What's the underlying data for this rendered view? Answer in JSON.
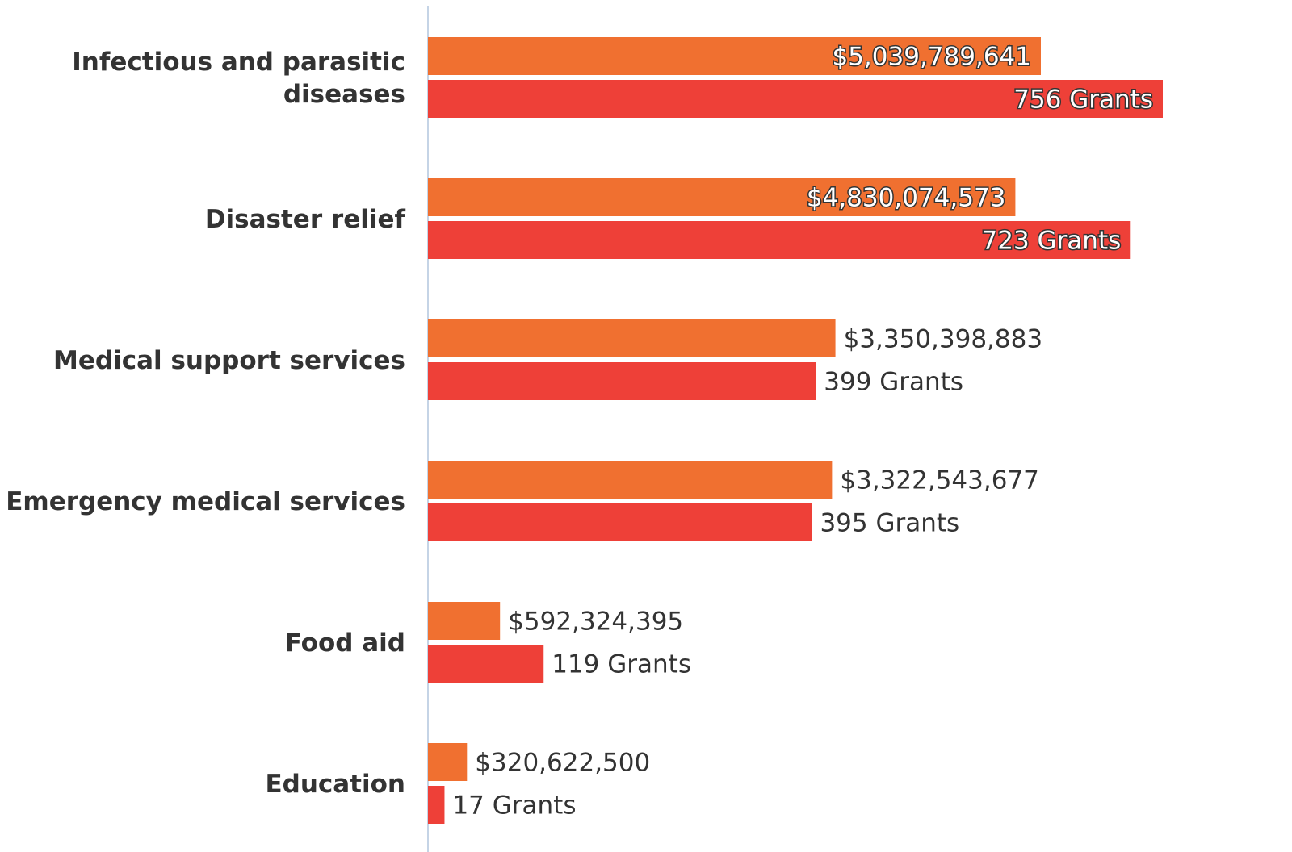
{
  "chart_data": {
    "type": "bar",
    "orientation": "horizontal",
    "categories": [
      [
        "Infectious and parasitic",
        "diseases"
      ],
      [
        "Disaster relief"
      ],
      [
        "Medical support services"
      ],
      [
        "Emergency medical services"
      ],
      [
        "Food aid"
      ],
      [
        "Education"
      ]
    ],
    "series": [
      {
        "values": [
          5039789641,
          4830074573,
          3350398883,
          3322543677,
          592324395,
          320622500
        ],
        "labels": [
          "$5,039,789,641",
          "$4,830,074,573",
          "$3,350,398,883",
          "$3,322,543,677",
          "$592,324,395",
          "$320,622,500"
        ],
        "color": "#f07030"
      },
      {
        "values": [
          756,
          723,
          399,
          395,
          119,
          17
        ],
        "labels": [
          "756 Grants",
          "723 Grants",
          "399 Grants",
          "395 Grants",
          "119 Grants",
          "17 Grants"
        ],
        "color": "#ee4038"
      }
    ],
    "axis_color": "#c5d4e6",
    "grid": false,
    "legend": "none"
  }
}
